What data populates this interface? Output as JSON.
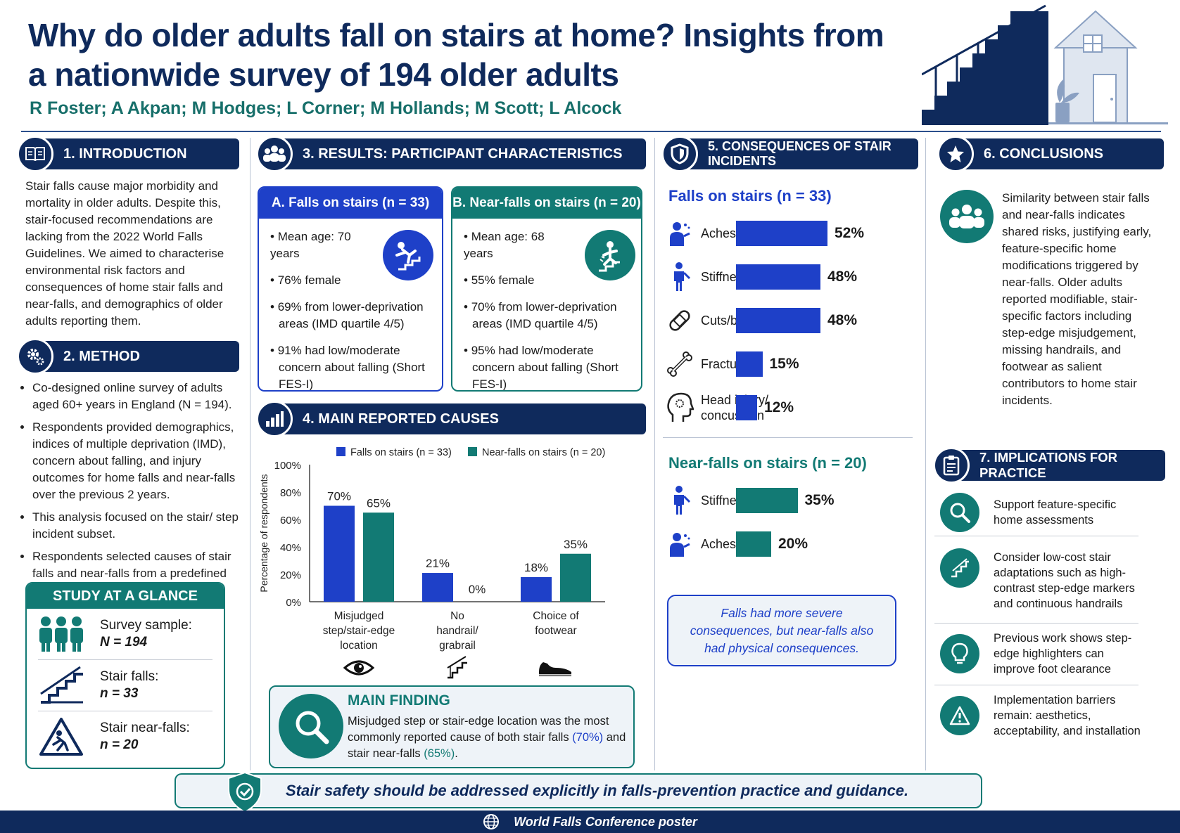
{
  "title": "Why do older adults fall on stairs at home? Insights from a nationwide survey of 194 older adults",
  "authors": "R Foster; A Akpan; M Hodges; L Corner; M Hollands; M Scott; L Alcock",
  "colors": {
    "navy": "#0f2a5c",
    "blue": "#1e40c8",
    "teal": "#127a74",
    "tealText": "#176f6a",
    "lightBg": "#eef3f8"
  },
  "introduction": {
    "heading": "1. INTRODUCTION",
    "icon": "book-icon",
    "text": "Stair falls cause major morbidity and mortality in older adults. Despite this, stair-focused recommendations are lacking from the 2022 World Falls Guidelines. We aimed to characterise environmental risk factors and consequences of home stair falls and near-falls, and demographics of older adults reporting them."
  },
  "method": {
    "heading": "2. METHOD",
    "icon": "gears-icon",
    "bullets": [
      "Co-designed online survey of adults aged 60+ years in England (N = 194).",
      "Respondents provided demographics, indices of multiple deprivation (IMD), concern about falling, and injury outcomes for home falls and near-falls over the previous 2 years.",
      "This analysis focused on the stair/ step incident subset.",
      "Respondents selected causes of stair falls and near-falls from a predefined list."
    ]
  },
  "glance": {
    "heading": "STUDY AT A GLANCE",
    "items": [
      {
        "label": "Survey sample:",
        "value": "N = 194",
        "icon": "people-icon"
      },
      {
        "label": "Stair falls:",
        "value": "n = 33",
        "icon": "stairs-icon"
      },
      {
        "label": "Stair near-falls:",
        "value": "n = 20",
        "icon": "warning-fall-icon"
      }
    ]
  },
  "results": {
    "heading": "3. RESULTS: PARTICIPANT CHARACTERISTICS",
    "icon": "group-icon",
    "falls": {
      "heading": "A. Falls on stairs (n = 33)",
      "items": [
        "Mean age: 70 years",
        "76% female",
        "69% from lower-deprivation areas (IMD quartile 4/5)",
        "91% had low/moderate concern about falling (Short FES-I)"
      ]
    },
    "nearfalls": {
      "heading": "B. Near-falls on stairs (n = 20)",
      "items": [
        "Mean age: 68 years",
        "55% female",
        "70% from lower-deprivation areas (IMD quartile 4/5)",
        "95% had low/moderate concern about falling (Short FES-I)"
      ]
    }
  },
  "causes": {
    "heading": "4. MAIN REPORTED CAUSES",
    "icon": "bar-chart-icon"
  },
  "chart_data": {
    "type": "bar",
    "categories": [
      "Misjudged step/stair-edge location",
      "No handrail/ grabrail",
      "Choice of footwear"
    ],
    "category_lines": [
      [
        "Misjudged",
        "step/stair-edge",
        "location"
      ],
      [
        "No",
        "handrail/",
        "grabrail"
      ],
      [
        "Choice of",
        "footwear"
      ]
    ],
    "series": [
      {
        "name": "Falls on stairs (n = 33)",
        "values": [
          70,
          21,
          18
        ],
        "color": "#1e40c8"
      },
      {
        "name": "Near-falls on stairs (n = 20)",
        "values": [
          65,
          0,
          35
        ],
        "color": "#127a74"
      }
    ],
    "ylabel": "Percentage of respondents",
    "ylim": [
      0,
      100
    ],
    "yticks": [
      "0%",
      "20%",
      "40%",
      "60%",
      "80%",
      "100%"
    ],
    "legend": "top",
    "category_icons": [
      "eye-icon",
      "stairs-icon",
      "shoe-icon"
    ]
  },
  "finding": {
    "heading": "MAIN FINDING",
    "text_before": "Misjudged step or stair-edge location was the most commonly reported cause of both stair falls ",
    "pct1": "(70%)",
    "text_mid": " and stair near-falls ",
    "pct2": "(65%)",
    "text_end": "."
  },
  "consequences": {
    "heading": "5. CONSEQUENCES OF STAIR INCIDENTS",
    "icon": "shield-icon",
    "falls_heading": "Falls on stairs (n = 33)",
    "falls": [
      {
        "label": "Aches/pains",
        "value": 52,
        "text": "52%",
        "icon": "aches-icon"
      },
      {
        "label": "Stiffness",
        "value": 48,
        "text": "48%",
        "icon": "stiffness-icon"
      },
      {
        "label": "Cuts/bruises",
        "value": 48,
        "text": "48%",
        "icon": "bandage-icon"
      },
      {
        "label": "Fracture",
        "value": 15,
        "text": "15%",
        "icon": "bone-icon"
      },
      {
        "label": "Head injury/ concussion",
        "value": 12,
        "text": "12%",
        "icon": "head-icon"
      }
    ],
    "nearfalls_heading": "Near-falls on stairs (n = 20)",
    "nearfalls": [
      {
        "label": "Stiffness",
        "value": 35,
        "text": "35%",
        "icon": "stiffness-icon"
      },
      {
        "label": "Aches/pains",
        "value": 20,
        "text": "20%",
        "icon": "aches-icon"
      }
    ],
    "note": "Falls had more severe consequences, but near-falls also had physical consequences."
  },
  "conclusions": {
    "heading": "6. CONCLUSIONS",
    "icon": "star-icon",
    "text": "Similarity between stair falls and near-falls indicates shared risks, justifying early, feature-specific home modifications triggered by near-falls. Older adults reported modifiable, stair-specific factors including step-edge misjudgement, missing handrails, and footwear as salient contributors to home stair incidents."
  },
  "implications": {
    "heading": "7. IMPLICATIONS FOR PRACTICE",
    "icon": "clipboard-icon",
    "items": [
      {
        "text": "Support feature-specific home assessments",
        "icon": "magnifier-icon"
      },
      {
        "text": "Consider low-cost stair adaptations such as high-contrast step-edge markers and continuous handrails",
        "icon": "stair-adapt-icon"
      },
      {
        "text": "Previous work shows step-edge highlighters can improve foot clearance",
        "icon": "lightbulb-icon"
      },
      {
        "text": "Implementation barriers remain: aesthetics, acceptability, and installation",
        "icon": "warning-icon"
      }
    ]
  },
  "banner": "Stair safety should be addressed explicitly in falls-prevention practice and guidance.",
  "footer": "World Falls Conference poster"
}
